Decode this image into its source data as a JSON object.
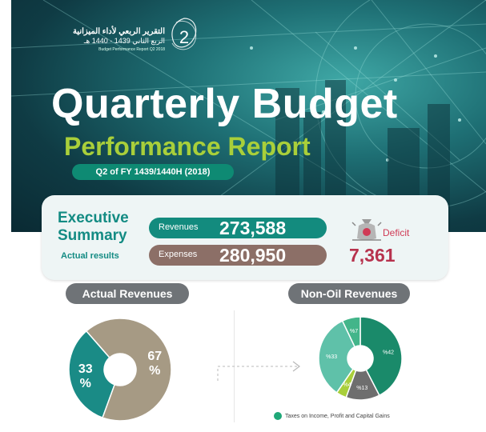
{
  "logo": {
    "arabic_line1": "التقرير الربعي لأداء الميزانية",
    "arabic_line2": "الربع الثاني 1439 - 1440 هـ",
    "english_line": "Budget Performance Report Q2 2018",
    "quarter_number": "2"
  },
  "header": {
    "title": "Quarterly Budget",
    "subtitle": "Performance Report",
    "period": "Q2 of FY 1439/1440H (2018)"
  },
  "summary": {
    "heading_line1": "Executive",
    "heading_line2": "Summary",
    "subheading": "Actual results",
    "revenues_label": "Revenues",
    "revenues_value": "273,588",
    "expenses_label": "Expenses",
    "expenses_value": "280,950",
    "deficit_label": "Deficit",
    "deficit_value": "7,361",
    "deficit_icon": "money-bag-icon"
  },
  "sections": {
    "actual_revenues": "Actual Revenues",
    "non_oil_revenues": "Non-Oil Revenues"
  },
  "colors": {
    "teal": "#138b7e",
    "brown": "#8c6f67",
    "lime": "#a9cf3a",
    "red": "#b7324d",
    "gray_tag": "#6f7377"
  },
  "actual_revenues_chart": {
    "slices": [
      {
        "label_top": "33",
        "label_bottom": "%",
        "value": 33,
        "color": "#1a8b86"
      },
      {
        "label_top": "67",
        "label_bottom": "%",
        "value": 67,
        "color": "#a69a84"
      }
    ]
  },
  "non_oil_chart": {
    "slices": [
      {
        "label": "%42",
        "value": 42,
        "color": "#1a8a6a"
      },
      {
        "label": "%13",
        "value": 13,
        "color": "#6e6e6e"
      },
      {
        "label": "%4",
        "value": 4,
        "color": "#a9cf3a"
      },
      {
        "label": "%33",
        "value": 33,
        "color": "#5fc1a9"
      },
      {
        "label": "%7",
        "value": 7,
        "color": "#43b58a"
      }
    ],
    "legend": "Taxes on Income, Profit and Capital Gains"
  }
}
